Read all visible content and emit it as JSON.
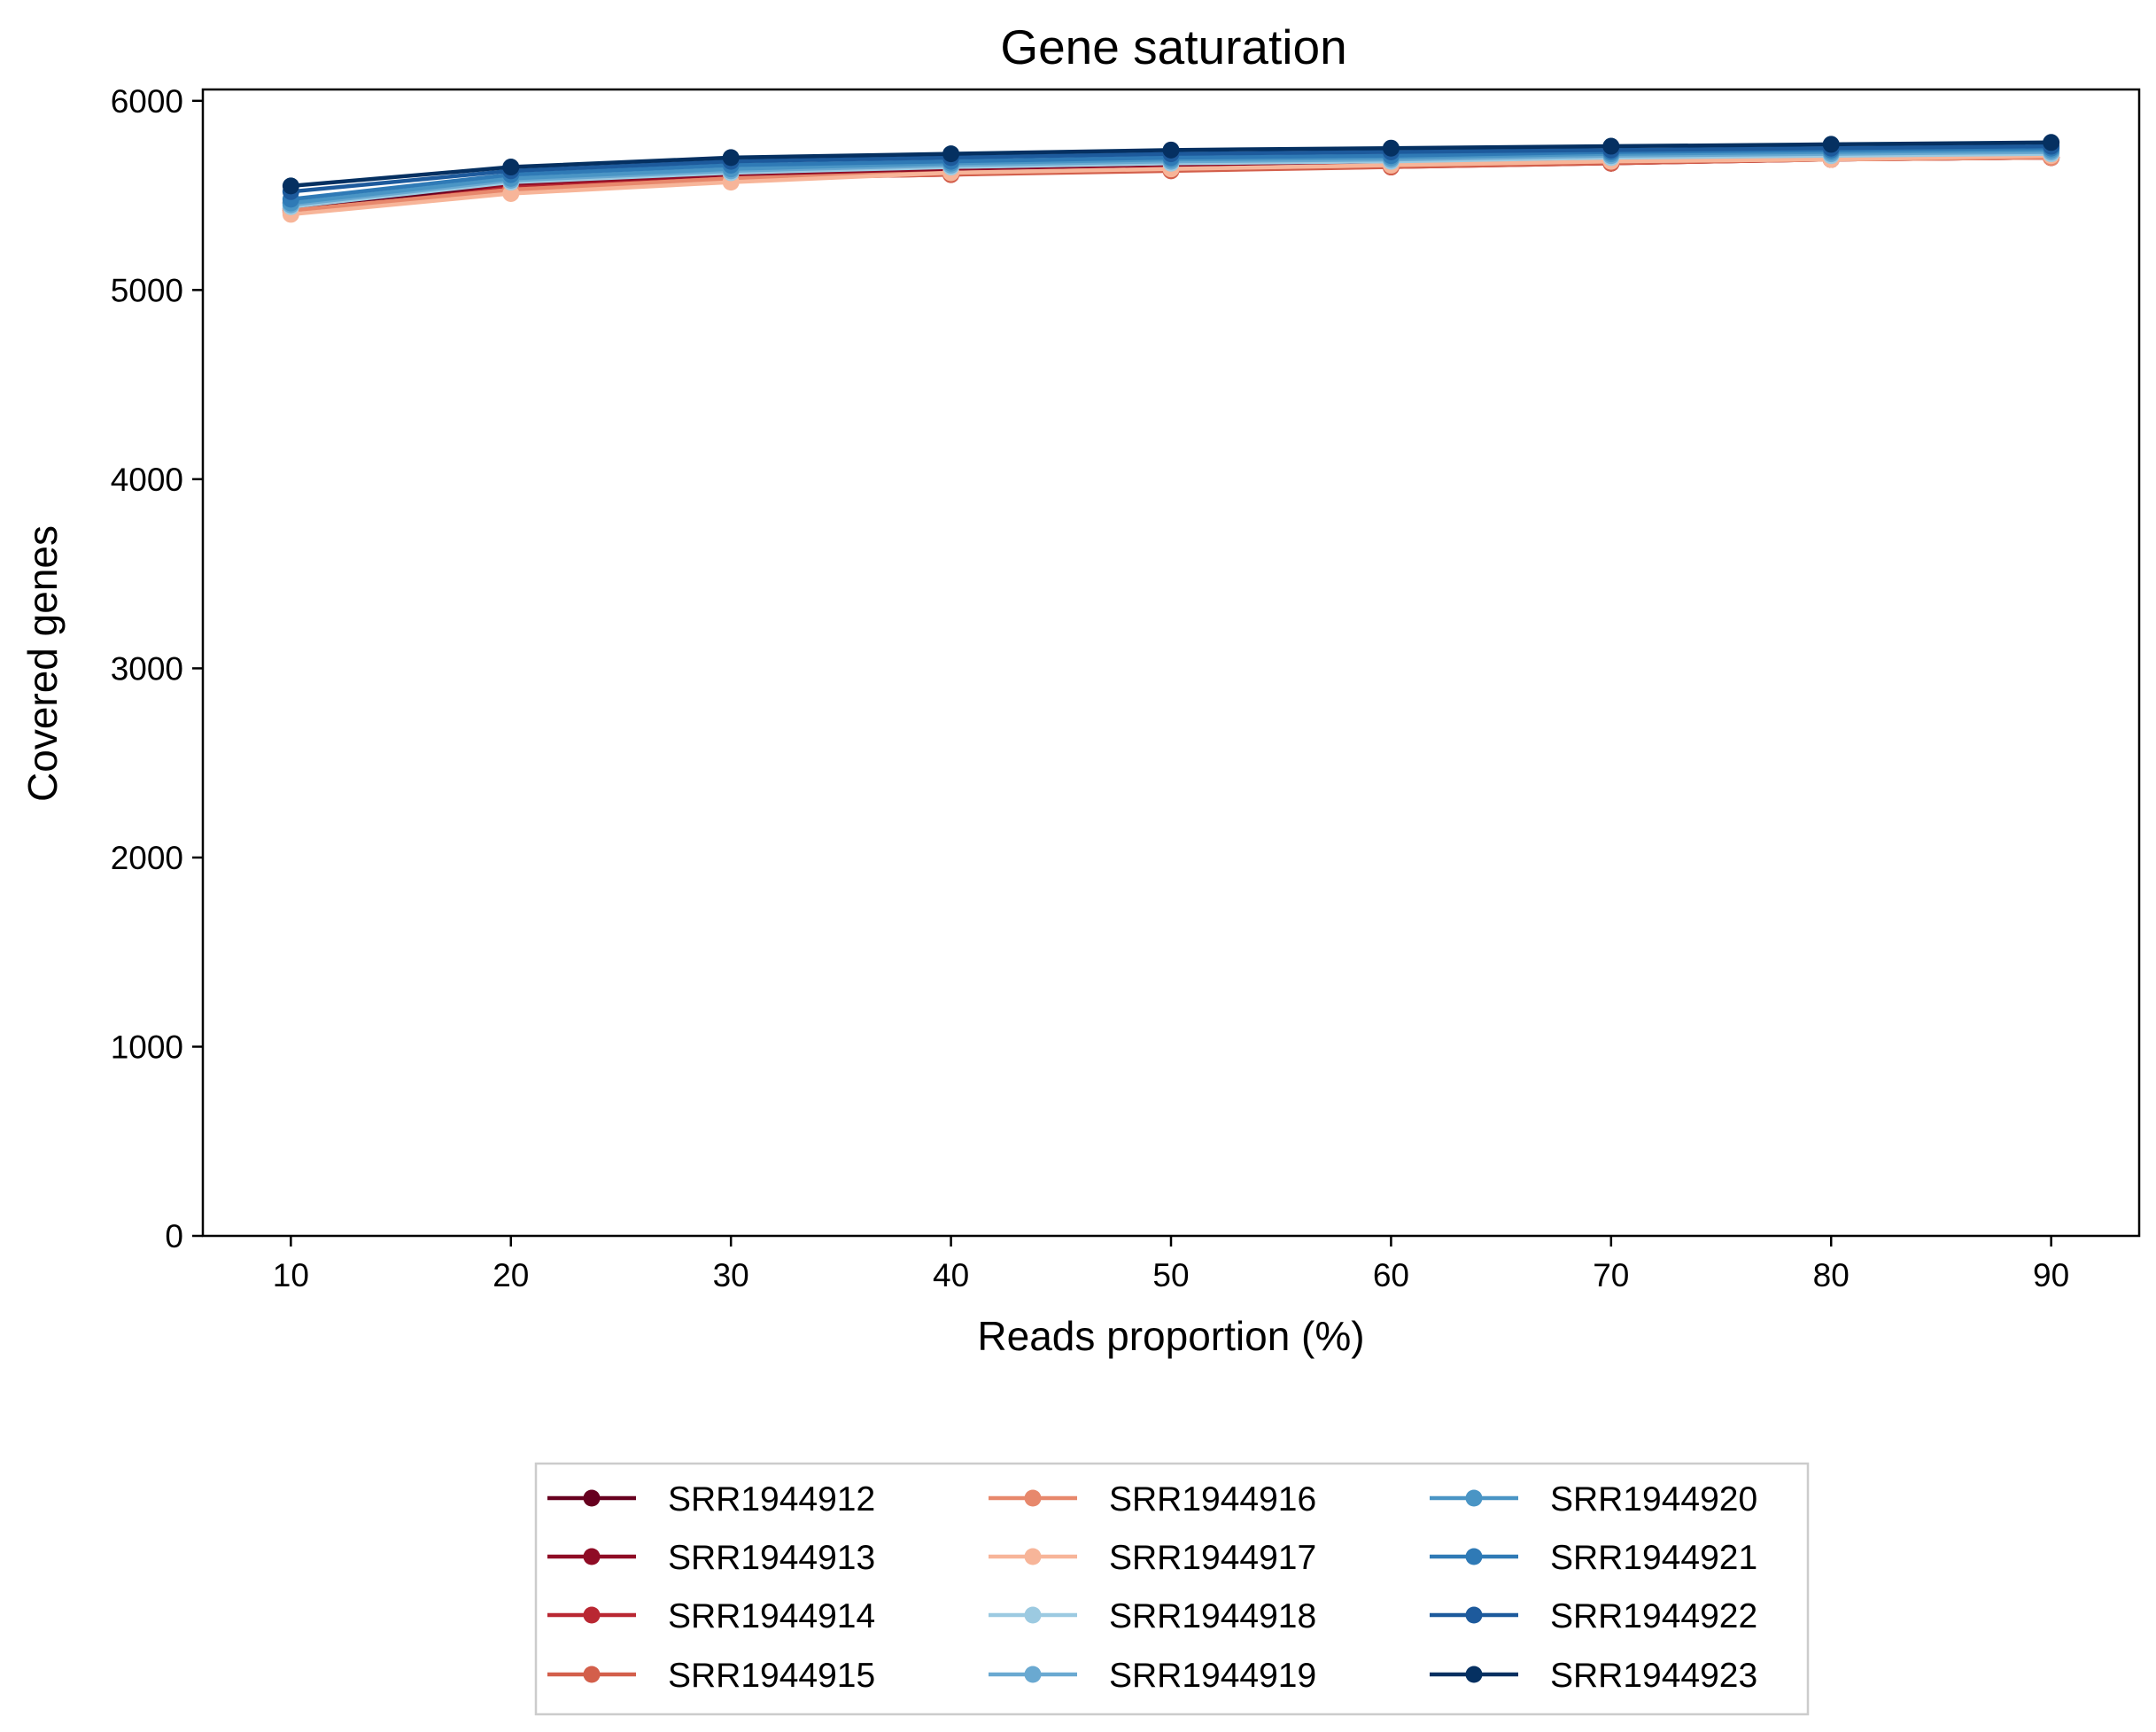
{
  "chart_data": {
    "type": "line",
    "title": "Gene saturation",
    "xlabel": "Reads proportion (%)",
    "ylabel": "Covered genes",
    "x": [
      10,
      20,
      30,
      40,
      50,
      60,
      70,
      80,
      90
    ],
    "x_ticks": [
      "10",
      "20",
      "30",
      "40",
      "50",
      "60",
      "70",
      "80",
      "90"
    ],
    "xlim": [
      6,
      94
    ],
    "ylim": [
      0,
      6060
    ],
    "y_ticks": [
      "0",
      "1000",
      "2000",
      "3000",
      "4000",
      "5000",
      "6000"
    ],
    "grid": false,
    "legend_placement": "bottom-center",
    "legend_columns": 3,
    "series": [
      {
        "name": "SRR1944912",
        "color": "#67001f",
        "values": [
          5430,
          5550,
          5600,
          5620,
          5640,
          5660,
          5670,
          5690,
          5700
        ]
      },
      {
        "name": "SRR1944913",
        "color": "#8f0c25",
        "values": [
          5460,
          5560,
          5610,
          5630,
          5650,
          5660,
          5680,
          5690,
          5700
        ]
      },
      {
        "name": "SRR1944914",
        "color": "#b92732",
        "values": [
          5410,
          5540,
          5590,
          5610,
          5640,
          5650,
          5670,
          5690,
          5700
        ]
      },
      {
        "name": "SRR1944915",
        "color": "#d35f4b",
        "values": [
          5420,
          5530,
          5590,
          5610,
          5630,
          5650,
          5670,
          5690,
          5700
        ]
      },
      {
        "name": "SRR1944916",
        "color": "#e7886c",
        "values": [
          5420,
          5530,
          5590,
          5620,
          5640,
          5660,
          5680,
          5690,
          5700
        ]
      },
      {
        "name": "SRR1944917",
        "color": "#f7b599",
        "values": [
          5400,
          5510,
          5570,
          5620,
          5640,
          5660,
          5680,
          5690,
          5710
        ]
      },
      {
        "name": "SRR1944918",
        "color": "#9ccae1",
        "values": [
          5440,
          5570,
          5620,
          5650,
          5670,
          5680,
          5700,
          5710,
          5720
        ]
      },
      {
        "name": "SRR1944919",
        "color": "#6aa9d1",
        "values": [
          5450,
          5580,
          5630,
          5660,
          5680,
          5690,
          5710,
          5720,
          5730
        ]
      },
      {
        "name": "SRR1944920",
        "color": "#4a95c5",
        "values": [
          5460,
          5590,
          5640,
          5670,
          5690,
          5700,
          5720,
          5730,
          5740
        ]
      },
      {
        "name": "SRR1944921",
        "color": "#2f7ab6",
        "values": [
          5480,
          5610,
          5660,
          5680,
          5700,
          5710,
          5730,
          5740,
          5750
        ]
      },
      {
        "name": "SRR1944922",
        "color": "#1d5a9c",
        "values": [
          5520,
          5630,
          5680,
          5700,
          5720,
          5730,
          5740,
          5750,
          5760
        ]
      },
      {
        "name": "SRR1944923",
        "color": "#053061",
        "values": [
          5550,
          5650,
          5700,
          5720,
          5740,
          5750,
          5760,
          5770,
          5780
        ]
      }
    ]
  }
}
